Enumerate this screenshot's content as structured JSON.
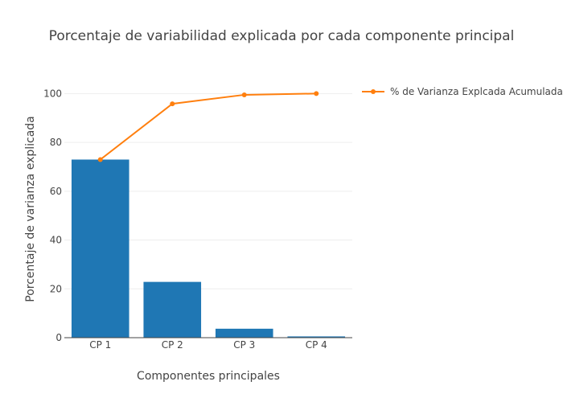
{
  "chart_data": {
    "type": "bar",
    "title": "Porcentaje de variabilidad explicada por cada componente principal",
    "xlabel": "Componentes principales",
    "ylabel": "Porcentaje de varianza explicada",
    "categories": [
      "CP 1",
      "CP 2",
      "CP 3",
      "CP 4"
    ],
    "ylim": [
      0,
      110
    ],
    "yticks": [
      0,
      20,
      40,
      60,
      80,
      100
    ],
    "grid": true,
    "legend_position": "top-right",
    "series": [
      {
        "type": "bar",
        "values": [
          72.96,
          22.85,
          3.67,
          0.52
        ],
        "color": "#1f77b4"
      },
      {
        "type": "line",
        "name": "% de Varianza Explcada Acumulada",
        "values": [
          72.96,
          95.81,
          99.48,
          100.0
        ],
        "color": "#ff7f0e"
      }
    ]
  }
}
